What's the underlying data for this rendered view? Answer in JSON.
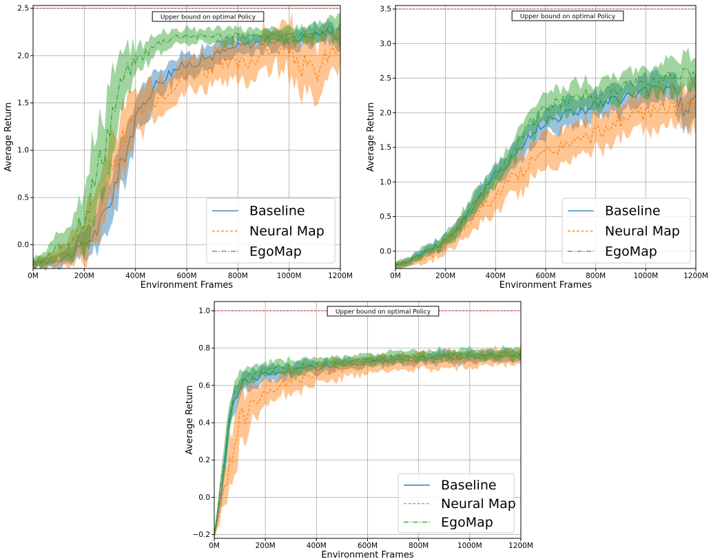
{
  "chart_data": [
    {
      "type": "line",
      "xlabel": "Environment Frames",
      "ylabel": "Average Return",
      "xlim": [
        0,
        1200
      ],
      "ylim": [
        -0.25,
        2.53
      ],
      "xticks": [
        0,
        200,
        400,
        600,
        800,
        1000,
        1200
      ],
      "xtick_labels": [
        "0M",
        "200M",
        "400M",
        "600M",
        "800M",
        "1000M",
        "1200M"
      ],
      "yticks": [
        0,
        0.5,
        1.0,
        1.5,
        2.0,
        2.5
      ],
      "ytick_labels": [
        "0.0",
        "0.5",
        "1.0",
        "1.5",
        "2.0",
        "2.5"
      ],
      "grid": true,
      "legend": "bottom-right",
      "annotation": "Upper bound on optimal Policy",
      "upper_bound": 2.5,
      "series": [
        {
          "name": "Baseline",
          "color": "#1f77b4",
          "style": "solid",
          "x": [
            0,
            50,
            100,
            150,
            200,
            250,
            300,
            350,
            400,
            450,
            500,
            550,
            600,
            650,
            700,
            750,
            800,
            850,
            900,
            950,
            1000,
            1050,
            1100,
            1150,
            1200
          ],
          "y": [
            -0.2,
            -0.18,
            -0.15,
            -0.1,
            0.0,
            0.15,
            0.45,
            0.9,
            1.3,
            1.6,
            1.75,
            1.85,
            1.9,
            1.95,
            2.0,
            2.05,
            2.1,
            2.12,
            2.15,
            2.17,
            2.15,
            2.2,
            2.22,
            2.25,
            2.2
          ],
          "band": [
            0.05,
            0.06,
            0.07,
            0.1,
            0.15,
            0.2,
            0.25,
            0.25,
            0.2,
            0.18,
            0.15,
            0.13,
            0.12,
            0.12,
            0.12,
            0.1,
            0.1,
            0.1,
            0.1,
            0.1,
            0.1,
            0.1,
            0.1,
            0.1,
            0.12
          ]
        },
        {
          "name": "Neural Map",
          "color": "#ff7f0e",
          "style": "dashed",
          "x": [
            0,
            50,
            100,
            150,
            200,
            250,
            300,
            350,
            400,
            450,
            500,
            550,
            600,
            650,
            700,
            750,
            800,
            850,
            900,
            950,
            1000,
            1050,
            1100,
            1150,
            1200
          ],
          "y": [
            -0.2,
            -0.17,
            -0.12,
            -0.05,
            0.1,
            0.35,
            0.75,
            1.1,
            1.35,
            1.5,
            1.6,
            1.7,
            1.8,
            1.85,
            1.85,
            1.9,
            1.9,
            1.95,
            2.05,
            2.1,
            2.05,
            1.9,
            1.8,
            2.0,
            2.1
          ],
          "band": [
            0.05,
            0.06,
            0.1,
            0.15,
            0.25,
            0.35,
            0.35,
            0.3,
            0.25,
            0.22,
            0.2,
            0.18,
            0.18,
            0.18,
            0.2,
            0.2,
            0.2,
            0.2,
            0.2,
            0.2,
            0.25,
            0.3,
            0.3,
            0.25,
            0.2
          ]
        },
        {
          "name": "EgoMap",
          "color": "#2ca02c",
          "style": "dashdot",
          "x": [
            0,
            50,
            100,
            150,
            200,
            250,
            300,
            350,
            400,
            450,
            500,
            550,
            600,
            650,
            700,
            750,
            800,
            850,
            900,
            950,
            1000,
            1050,
            1100,
            1150,
            1200
          ],
          "y": [
            -0.2,
            -0.15,
            -0.05,
            0.1,
            0.35,
            0.75,
            1.3,
            1.75,
            1.95,
            2.05,
            2.15,
            2.2,
            2.22,
            2.2,
            2.22,
            2.2,
            2.22,
            2.2,
            2.2,
            2.22,
            2.2,
            2.22,
            2.25,
            2.28,
            2.3
          ],
          "band": [
            0.05,
            0.08,
            0.15,
            0.25,
            0.35,
            0.45,
            0.45,
            0.25,
            0.15,
            0.12,
            0.1,
            0.08,
            0.08,
            0.08,
            0.08,
            0.08,
            0.08,
            0.08,
            0.08,
            0.08,
            0.08,
            0.08,
            0.1,
            0.12,
            0.15
          ]
        }
      ]
    },
    {
      "type": "line",
      "xlabel": "Environment Frames",
      "ylabel": "Average Return",
      "xlim": [
        0,
        1200
      ],
      "ylim": [
        -0.25,
        3.55
      ],
      "xticks": [
        0,
        200,
        400,
        600,
        800,
        1000,
        1200
      ],
      "xtick_labels": [
        "0M",
        "200M",
        "400M",
        "600M",
        "800M",
        "1000M",
        "1200M"
      ],
      "yticks": [
        0,
        0.5,
        1.0,
        1.5,
        2.0,
        2.5,
        3.0,
        3.5
      ],
      "ytick_labels": [
        "0.0",
        "0.5",
        "1.0",
        "1.5",
        "2.0",
        "2.5",
        "3.0",
        "3.5"
      ],
      "grid": true,
      "legend": "bottom-right",
      "annotation": "Upper bound on optimal Policy",
      "upper_bound": 3.5,
      "series": [
        {
          "name": "Baseline",
          "color": "#1f77b4",
          "style": "solid",
          "x": [
            0,
            50,
            100,
            150,
            200,
            250,
            300,
            350,
            400,
            450,
            500,
            550,
            600,
            650,
            700,
            750,
            800,
            850,
            900,
            950,
            1000,
            1050,
            1100,
            1150,
            1200
          ],
          "y": [
            -0.2,
            -0.15,
            -0.05,
            0.05,
            0.15,
            0.35,
            0.6,
            0.85,
            1.1,
            1.3,
            1.5,
            1.7,
            1.9,
            1.95,
            2.0,
            2.05,
            2.1,
            2.15,
            2.2,
            2.25,
            2.3,
            2.35,
            2.4,
            2.05,
            2.2
          ],
          "band": [
            0.05,
            0.06,
            0.07,
            0.08,
            0.1,
            0.12,
            0.14,
            0.15,
            0.15,
            0.15,
            0.18,
            0.2,
            0.2,
            0.2,
            0.2,
            0.2,
            0.2,
            0.2,
            0.2,
            0.2,
            0.2,
            0.2,
            0.2,
            0.3,
            0.3
          ]
        },
        {
          "name": "Neural Map",
          "color": "#ff7f0e",
          "style": "dashed",
          "x": [
            0,
            50,
            100,
            150,
            200,
            250,
            300,
            350,
            400,
            450,
            500,
            550,
            600,
            650,
            700,
            750,
            800,
            850,
            900,
            950,
            1000,
            1050,
            1100,
            1150,
            1200
          ],
          "y": [
            -0.2,
            -0.18,
            -0.12,
            -0.05,
            0.1,
            0.25,
            0.45,
            0.65,
            0.8,
            1.0,
            1.15,
            1.3,
            1.4,
            1.5,
            1.55,
            1.6,
            1.7,
            1.8,
            1.9,
            1.95,
            2.0,
            2.05,
            2.1,
            2.0,
            2.1
          ],
          "band": [
            0.05,
            0.06,
            0.08,
            0.1,
            0.12,
            0.15,
            0.18,
            0.2,
            0.22,
            0.22,
            0.25,
            0.25,
            0.25,
            0.25,
            0.25,
            0.25,
            0.25,
            0.25,
            0.25,
            0.25,
            0.25,
            0.25,
            0.25,
            0.3,
            0.3
          ]
        },
        {
          "name": "EgoMap",
          "color": "#2ca02c",
          "style": "dashdot",
          "x": [
            0,
            50,
            100,
            150,
            200,
            250,
            300,
            350,
            400,
            450,
            500,
            550,
            600,
            650,
            700,
            750,
            800,
            850,
            900,
            950,
            1000,
            1050,
            1100,
            1150,
            1200
          ],
          "y": [
            -0.2,
            -0.15,
            -0.05,
            0.05,
            0.15,
            0.35,
            0.6,
            0.85,
            1.1,
            1.35,
            1.65,
            1.9,
            2.05,
            2.15,
            2.2,
            2.25,
            2.25,
            2.3,
            2.35,
            2.4,
            2.45,
            2.5,
            2.55,
            2.6,
            2.6
          ],
          "band": [
            0.05,
            0.06,
            0.07,
            0.08,
            0.1,
            0.12,
            0.14,
            0.15,
            0.15,
            0.15,
            0.18,
            0.2,
            0.2,
            0.2,
            0.2,
            0.2,
            0.2,
            0.2,
            0.2,
            0.2,
            0.2,
            0.2,
            0.25,
            0.25,
            0.25
          ]
        }
      ]
    },
    {
      "type": "line",
      "xlabel": "Environment Frames",
      "ylabel": "Average Return",
      "xlim": [
        0,
        1200
      ],
      "ylim": [
        -0.22,
        1.05
      ],
      "xticks": [
        0,
        200,
        400,
        600,
        800,
        1000,
        1200
      ],
      "xtick_labels": [
        "0M",
        "200M",
        "400M",
        "600M",
        "800M",
        "1000M",
        "1200M"
      ],
      "yticks": [
        -0.2,
        0,
        0.2,
        0.4,
        0.6,
        0.8,
        1.0
      ],
      "ytick_labels": [
        "−0.2",
        "0.0",
        "0.2",
        "0.4",
        "0.6",
        "0.8",
        "1.0"
      ],
      "grid": true,
      "legend": "bottom-right",
      "annotation": "Upper bound on optimal Policy",
      "upper_bound": 1.0,
      "series": [
        {
          "name": "Baseline",
          "color": "#1f77b4",
          "style": "solid",
          "x": [
            0,
            25,
            50,
            75,
            100,
            150,
            200,
            250,
            300,
            400,
            500,
            600,
            700,
            800,
            900,
            1000,
            1100,
            1200
          ],
          "y": [
            -0.2,
            0.0,
            0.3,
            0.5,
            0.6,
            0.64,
            0.66,
            0.67,
            0.68,
            0.7,
            0.71,
            0.72,
            0.73,
            0.74,
            0.75,
            0.75,
            0.76,
            0.76
          ],
          "band": [
            0.02,
            0.06,
            0.08,
            0.07,
            0.06,
            0.05,
            0.04,
            0.04,
            0.04,
            0.04,
            0.03,
            0.03,
            0.03,
            0.03,
            0.03,
            0.03,
            0.03,
            0.03
          ]
        },
        {
          "name": "Neural Map",
          "color": "#ff7f0e",
          "style": "dashed",
          "x": [
            0,
            25,
            50,
            75,
            100,
            150,
            200,
            250,
            300,
            400,
            500,
            600,
            700,
            800,
            900,
            1000,
            1100,
            1200
          ],
          "y": [
            -0.2,
            -0.05,
            0.1,
            0.25,
            0.4,
            0.52,
            0.57,
            0.6,
            0.62,
            0.66,
            0.69,
            0.71,
            0.72,
            0.73,
            0.74,
            0.74,
            0.75,
            0.76
          ],
          "band": [
            0.02,
            0.06,
            0.1,
            0.15,
            0.15,
            0.1,
            0.07,
            0.06,
            0.06,
            0.05,
            0.05,
            0.04,
            0.04,
            0.04,
            0.04,
            0.04,
            0.04,
            0.04
          ]
        },
        {
          "name": "EgoMap",
          "color": "#2ca02c",
          "style": "dashdot",
          "x": [
            0,
            25,
            50,
            75,
            100,
            150,
            200,
            250,
            300,
            400,
            500,
            600,
            700,
            800,
            900,
            1000,
            1100,
            1200
          ],
          "y": [
            -0.2,
            0.05,
            0.35,
            0.55,
            0.63,
            0.66,
            0.68,
            0.69,
            0.7,
            0.72,
            0.73,
            0.74,
            0.75,
            0.76,
            0.76,
            0.77,
            0.77,
            0.77
          ],
          "band": [
            0.02,
            0.06,
            0.08,
            0.06,
            0.05,
            0.04,
            0.04,
            0.04,
            0.04,
            0.03,
            0.03,
            0.03,
            0.03,
            0.03,
            0.03,
            0.03,
            0.03,
            0.03
          ]
        }
      ]
    }
  ]
}
